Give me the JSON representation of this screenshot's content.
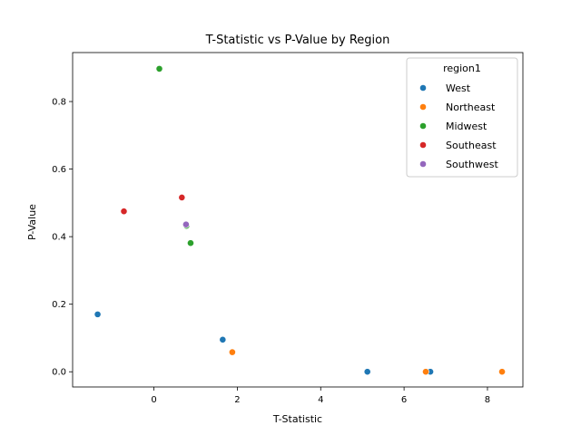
{
  "chart_data": {
    "type": "scatter",
    "title": "T-Statistic vs P-Value by Region",
    "xlabel": "T-Statistic",
    "ylabel": "P-Value",
    "xlim": [
      -1.95,
      8.85
    ],
    "ylim": [
      -0.045,
      0.945
    ],
    "xticks": [
      0,
      2,
      4,
      6,
      8
    ],
    "yticks": [
      0.0,
      0.2,
      0.4,
      0.6,
      0.8
    ],
    "xtick_labels": [
      "0",
      "2",
      "4",
      "6",
      "8"
    ],
    "ytick_labels": [
      "0.0",
      "0.2",
      "0.4",
      "0.6",
      "0.8"
    ],
    "grid": false,
    "legend": {
      "title": "region1",
      "placement": "top-right"
    },
    "series": [
      {
        "name": "West",
        "color": "#1f77b4",
        "x": [
          -1.35,
          1.65,
          5.12,
          6.63
        ],
        "y": [
          0.17,
          0.095,
          0.0,
          0.0
        ]
      },
      {
        "name": "Northeast",
        "color": "#ff7f0e",
        "x": [
          1.88,
          6.52,
          8.35
        ],
        "y": [
          0.058,
          0.0,
          0.0
        ]
      },
      {
        "name": "Midwest",
        "color": "#2ca02c",
        "x": [
          0.13,
          0.78,
          0.88
        ],
        "y": [
          0.897,
          0.432,
          0.381
        ]
      },
      {
        "name": "Southeast",
        "color": "#d62728",
        "x": [
          -0.72,
          0.67
        ],
        "y": [
          0.475,
          0.516
        ]
      },
      {
        "name": "Southwest",
        "color": "#9467bd",
        "x": [
          0.77
        ],
        "y": [
          0.436
        ]
      }
    ]
  }
}
